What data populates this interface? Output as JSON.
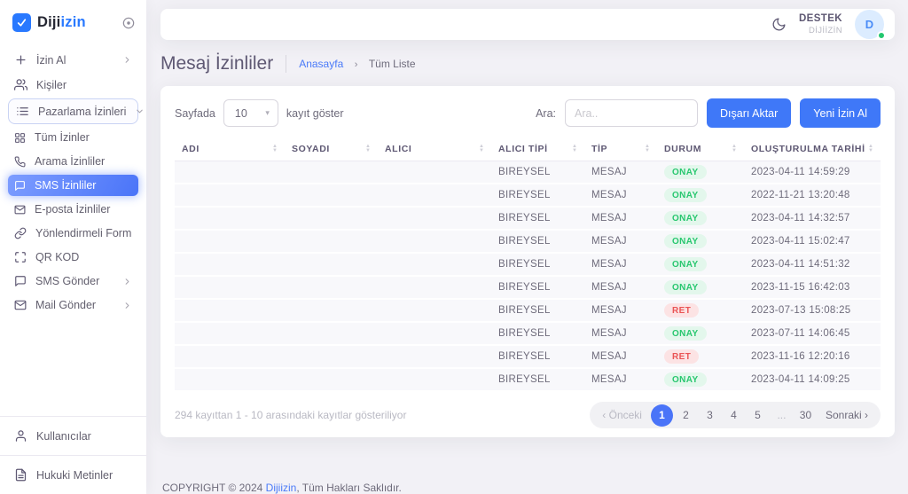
{
  "brand": {
    "logo_dark": "Diji",
    "logo_accent": "izin"
  },
  "sidebar": {
    "items": [
      {
        "label": "İzin Al",
        "icon": "plus-icon",
        "chevron": "right"
      },
      {
        "label": "Kişiler",
        "icon": "people-icon"
      },
      {
        "label": "Pazarlama İzinleri",
        "icon": "list-icon",
        "chevron": "down",
        "boxed": true
      },
      {
        "label": "Tüm İzinler",
        "icon": "grid-icon"
      },
      {
        "label": "Arama İzinliler",
        "icon": "phone-icon"
      },
      {
        "label": "SMS İzinliler",
        "icon": "chat-bubble-icon",
        "active": true
      },
      {
        "label": "E-posta İzinliler",
        "icon": "mail-icon"
      },
      {
        "label": "Yönlendirmeli Form",
        "icon": "link-icon"
      },
      {
        "label": "QR KOD",
        "icon": "qr-scan-icon"
      },
      {
        "label": "SMS Gönder",
        "icon": "chat-bubble-icon",
        "chevron": "right"
      },
      {
        "label": "Mail Gönder",
        "icon": "mail-icon",
        "chevron": "right"
      }
    ],
    "bottom": [
      {
        "label": "Kullanıcılar",
        "icon": "user-icon"
      },
      {
        "label": "Hukuki Metinler",
        "icon": "document-icon"
      }
    ]
  },
  "header": {
    "support_name": "DESTEK",
    "support_org": "DİJİİZİN",
    "avatar_initial": "D"
  },
  "page": {
    "title": "Mesaj İzinliler",
    "breadcrumb": {
      "home": "Anasayfa",
      "current": "Tüm Liste"
    }
  },
  "toolbar": {
    "page_size_prefix": "Sayfada",
    "page_size_value": "10",
    "page_size_suffix": "kayıt göster",
    "search_label": "Ara:",
    "search_placeholder": "Ara..",
    "export_label": "Dışarı Aktar",
    "new_permission_label": "Yeni İzin Al"
  },
  "table": {
    "columns": [
      "ADI",
      "SOYADI",
      "ALICI",
      "ALICI TİPİ",
      "TİP",
      "DURUM",
      "OLUŞTURULMA TARİHİ"
    ],
    "rows": [
      {
        "adi": "",
        "soyadi": "",
        "alici": "",
        "alici_tipi": "BIREYSEL",
        "tip": "MESAJ",
        "durum": "ONAY",
        "tarih": "2023-04-11 14:59:29"
      },
      {
        "adi": "",
        "soyadi": "",
        "alici": "",
        "alici_tipi": "BIREYSEL",
        "tip": "MESAJ",
        "durum": "ONAY",
        "tarih": "2022-11-21 13:20:48"
      },
      {
        "adi": "",
        "soyadi": "",
        "alici": "",
        "alici_tipi": "BIREYSEL",
        "tip": "MESAJ",
        "durum": "ONAY",
        "tarih": "2023-04-11 14:32:57"
      },
      {
        "adi": "",
        "soyadi": "",
        "alici": "",
        "alici_tipi": "BIREYSEL",
        "tip": "MESAJ",
        "durum": "ONAY",
        "tarih": "2023-04-11 15:02:47"
      },
      {
        "adi": "",
        "soyadi": "",
        "alici": "",
        "alici_tipi": "BIREYSEL",
        "tip": "MESAJ",
        "durum": "ONAY",
        "tarih": "2023-04-11 14:51:32"
      },
      {
        "adi": "",
        "soyadi": "",
        "alici": "",
        "alici_tipi": "BIREYSEL",
        "tip": "MESAJ",
        "durum": "ONAY",
        "tarih": "2023-11-15 16:42:03"
      },
      {
        "adi": "",
        "soyadi": "",
        "alici": "",
        "alici_tipi": "BIREYSEL",
        "tip": "MESAJ",
        "durum": "RET",
        "tarih": "2023-07-13 15:08:25"
      },
      {
        "adi": "",
        "soyadi": "",
        "alici": "",
        "alici_tipi": "BIREYSEL",
        "tip": "MESAJ",
        "durum": "ONAY",
        "tarih": "2023-07-11 14:06:45"
      },
      {
        "adi": "",
        "soyadi": "",
        "alici": "",
        "alici_tipi": "BIREYSEL",
        "tip": "MESAJ",
        "durum": "RET",
        "tarih": "2023-11-16 12:20:16"
      },
      {
        "adi": "",
        "soyadi": "",
        "alici": "",
        "alici_tipi": "BIREYSEL",
        "tip": "MESAJ",
        "durum": "ONAY",
        "tarih": "2023-04-11 14:09:25"
      }
    ]
  },
  "pagination": {
    "info": "294 kayıttan 1 - 10 arasındaki kayıtlar gösteriliyor",
    "prev_label": "‹ Önceki",
    "pages": [
      "1",
      "2",
      "3",
      "4",
      "5",
      "...",
      "30"
    ],
    "active_page": "1",
    "next_label": "Sonraki ›"
  },
  "footer": {
    "prefix": "COPYRIGHT © 2024 ",
    "brand": "Dijiizin",
    "suffix": ", Tüm Hakları Saklıdır."
  },
  "colors": {
    "accent": "#3f78f8",
    "logo_blue": "#2979ff",
    "success": "#28c76f",
    "danger": "#ea5455"
  }
}
